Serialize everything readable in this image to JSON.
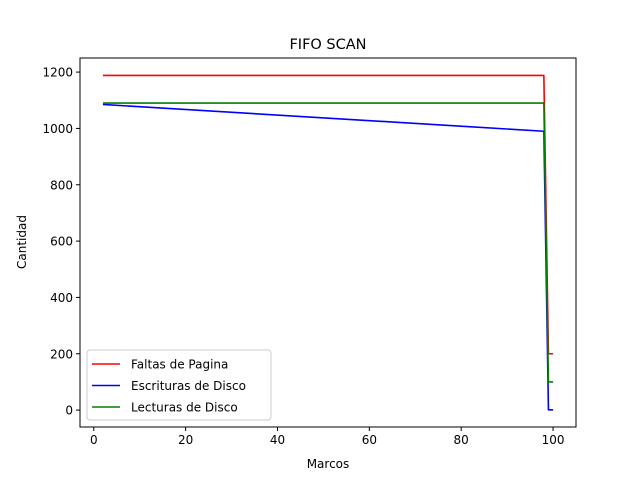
{
  "chart_data": {
    "type": "line",
    "title": "FIFO SCAN",
    "xlabel": "Marcos",
    "ylabel": "Cantidad",
    "xlim": [
      -3,
      105
    ],
    "ylim": [
      -60,
      1250
    ],
    "xticks": [
      0,
      20,
      40,
      60,
      80,
      100
    ],
    "yticks": [
      0,
      200,
      400,
      600,
      800,
      1000,
      1200
    ],
    "grid": false,
    "legend_position": "lower-left",
    "series": [
      {
        "name": "Faltas de Pagina",
        "color": "#ff0000",
        "points": [
          [
            2,
            1188
          ],
          [
            98,
            1188
          ],
          [
            99,
            200
          ],
          [
            100,
            200
          ]
        ]
      },
      {
        "name": "Escrituras de Disco",
        "color": "#0000ff",
        "points": [
          [
            2,
            1085
          ],
          [
            98,
            990
          ],
          [
            99,
            1
          ],
          [
            100,
            1
          ]
        ]
      },
      {
        "name": "Lecturas de Disco",
        "color": "#008000",
        "points": [
          [
            2,
            1090
          ],
          [
            98,
            1090
          ],
          [
            99,
            100
          ],
          [
            100,
            100
          ]
        ]
      }
    ]
  }
}
